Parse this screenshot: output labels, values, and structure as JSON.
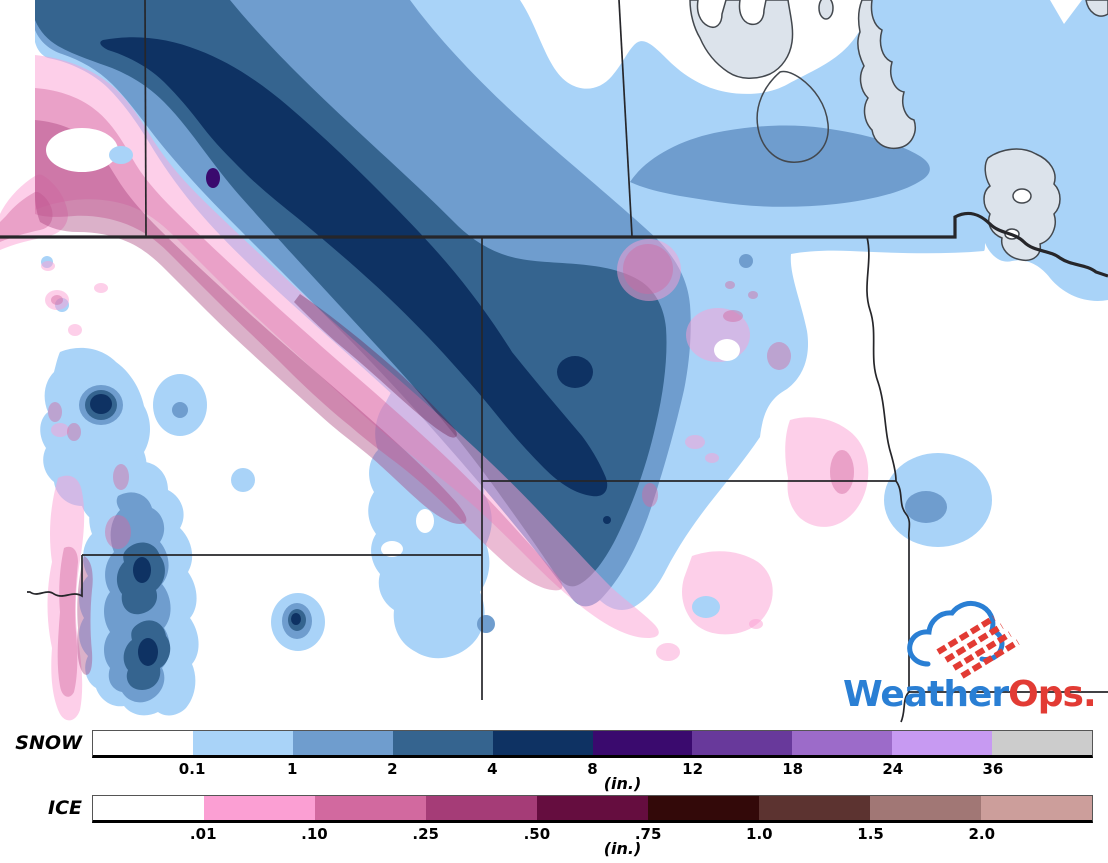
{
  "title": "WeatherOps snow and ice accumulation forecast map",
  "logo": {
    "primary": "Weather",
    "secondary": "Ops."
  },
  "legend": {
    "snow": {
      "label": "SNOW",
      "unit": "(in.)",
      "tick_labels": [
        "0.1",
        "1",
        "2",
        "4",
        "8",
        "12",
        "18",
        "24",
        "36"
      ],
      "colors": [
        "#ffffff",
        "#a9d3f8",
        "#6f9dce",
        "#35648f",
        "#0e3263",
        "#3a0a6e",
        "#68399b",
        "#9c6bc9",
        "#c79af2",
        "#cccccc"
      ]
    },
    "ice": {
      "label": "ICE",
      "unit": "(in.)",
      "tick_labels": [
        ".01",
        ".10",
        ".25",
        ".50",
        ".75",
        "1.0",
        "1.5",
        "2.0"
      ],
      "colors": [
        "#ffffff",
        "#fb9fd3",
        "#d2699f",
        "#a53c77",
        "#650d3f",
        "#330909",
        "#5c3330",
        "#a17775",
        "#cc9e9b"
      ]
    }
  },
  "palette": {
    "snow_01": "#a9d3f8",
    "snow_1": "#6f9dce",
    "snow_2": "#35648f",
    "snow_4": "#0e3263",
    "snow_8": "#3a0a6e",
    "ice_trace": "rgba(251,159,211,0.50)",
    "ice_10": "rgba(210,105,159,0.45)",
    "ice_25": "rgba(165,60,119,0.40)",
    "ice_50": "rgba(101,13,63,0.35)",
    "white": "#ffffff",
    "border": "#26262a",
    "lake_fill": "#dce3eb",
    "lake_stroke": "#43484e",
    "logo_blue": "#2a7fd4",
    "logo_red": "#e23b34"
  }
}
